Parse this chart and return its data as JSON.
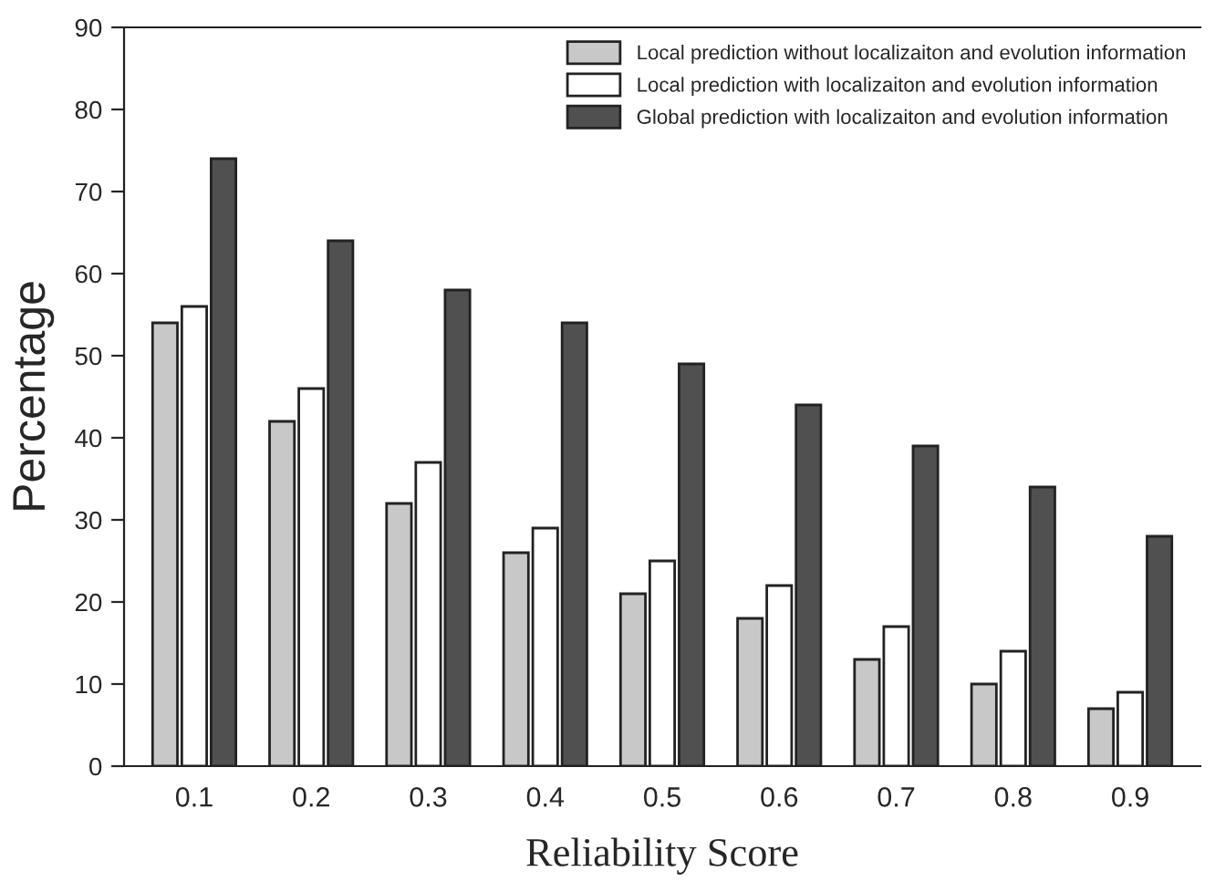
{
  "chart_data": {
    "type": "bar",
    "xlabel": "Reliability Score",
    "ylabel": "Percentage",
    "categories": [
      "0.1",
      "0.2",
      "0.3",
      "0.4",
      "0.5",
      "0.6",
      "0.7",
      "0.8",
      "0.9"
    ],
    "series": [
      {
        "name": "Local prediction without localizaiton and evolution information",
        "color": "#c8c8c8",
        "values": [
          54,
          42,
          32,
          26,
          21,
          18,
          13,
          10,
          7
        ]
      },
      {
        "name": "Local prediction with localizaiton and evolution information",
        "color": "#ffffff",
        "values": [
          56,
          46,
          37,
          29,
          25,
          22,
          17,
          14,
          9
        ]
      },
      {
        "name": "Global prediction with localizaiton and evolution information",
        "color": "#505050",
        "values": [
          74,
          64,
          58,
          54,
          49,
          44,
          39,
          34,
          28
        ]
      }
    ],
    "ylim": [
      0,
      90
    ],
    "yticks": [
      0,
      10,
      20,
      30,
      40,
      50,
      60,
      70,
      80,
      90
    ],
    "grid": false,
    "legend": "top right"
  }
}
